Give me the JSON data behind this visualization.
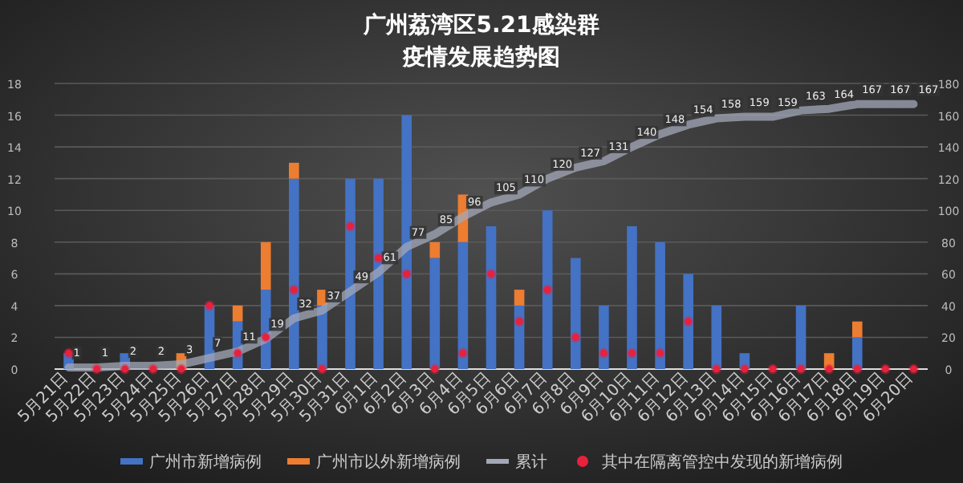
{
  "chart_data": {
    "type": "bar",
    "title": "广州荔湾区5.21感染群",
    "subtitle": "疫情发展趋势图",
    "stacked": true,
    "categories": [
      "5月21日",
      "5月22日",
      "5月23日",
      "5月24日",
      "5月25日",
      "5月26日",
      "5月27日",
      "5月28日",
      "5月29日",
      "5月30日",
      "5月31日",
      "6月1日",
      "6月2日",
      "6月3日",
      "6月4日",
      "6月5日",
      "6月6日",
      "6月7日",
      "6月8日",
      "6月9日",
      "6月10日",
      "6月11日",
      "6月12日",
      "6月13日",
      "6月14日",
      "6月15日",
      "6月16日",
      "6月17日",
      "6月18日",
      "6月19日",
      "6月20日"
    ],
    "series": [
      {
        "name": "广州市新增病例",
        "type": "bar",
        "color": "#4472c4",
        "values": [
          1,
          0,
          1,
          0,
          0,
          4,
          3,
          5,
          12,
          4,
          12,
          12,
          16,
          7,
          8,
          9,
          4,
          10,
          7,
          4,
          9,
          8,
          6,
          4,
          1,
          0,
          4,
          0,
          2,
          0,
          0
        ]
      },
      {
        "name": "广州市以外新增病例",
        "type": "bar",
        "color": "#ed7d31",
        "values": [
          0,
          0,
          0,
          0,
          1,
          0,
          1,
          3,
          1,
          1,
          0,
          0,
          0,
          1,
          3,
          0,
          1,
          0,
          0,
          0,
          0,
          0,
          0,
          0,
          0,
          0,
          0,
          1,
          1,
          0,
          0
        ]
      },
      {
        "name": "累计",
        "type": "line",
        "axis": "y2",
        "color": "#a3a8b8",
        "values": [
          1,
          1,
          2,
          2,
          3,
          7,
          11,
          19,
          32,
          37,
          49,
          61,
          77,
          85,
          96,
          105,
          110,
          120,
          127,
          131,
          140,
          148,
          154,
          158,
          159,
          159,
          163,
          164,
          167,
          167,
          167
        ],
        "value_labels": [
          "1",
          "1",
          "2",
          "2",
          "3",
          "7",
          "11",
          "19",
          "32",
          "37",
          "49",
          "61",
          "77",
          "85",
          "96",
          "105",
          "110",
          "120",
          "127",
          "131",
          "140",
          "148",
          "154",
          "158",
          "159",
          "159",
          "163",
          "164",
          "167",
          "167",
          "167"
        ]
      },
      {
        "name": "其中在隔离管控中发现的新增病例",
        "type": "scatter",
        "marker": "circle",
        "color": "#e8213c",
        "values": [
          1,
          0,
          0,
          0,
          0,
          4,
          1,
          2,
          5,
          0,
          9,
          7,
          6,
          0,
          1,
          6,
          3,
          5,
          2,
          1,
          1,
          1,
          3,
          0,
          0,
          0,
          0,
          0,
          0,
          0,
          0
        ]
      }
    ],
    "ylim": [
      0,
      18
    ],
    "yticks": [
      0,
      2,
      4,
      6,
      8,
      10,
      12,
      14,
      16,
      18
    ],
    "y2lim": [
      0,
      180
    ],
    "y2ticks": [
      0,
      20,
      40,
      60,
      80,
      100,
      120,
      140,
      160,
      180
    ],
    "grid": "y",
    "legend": "bottom"
  }
}
